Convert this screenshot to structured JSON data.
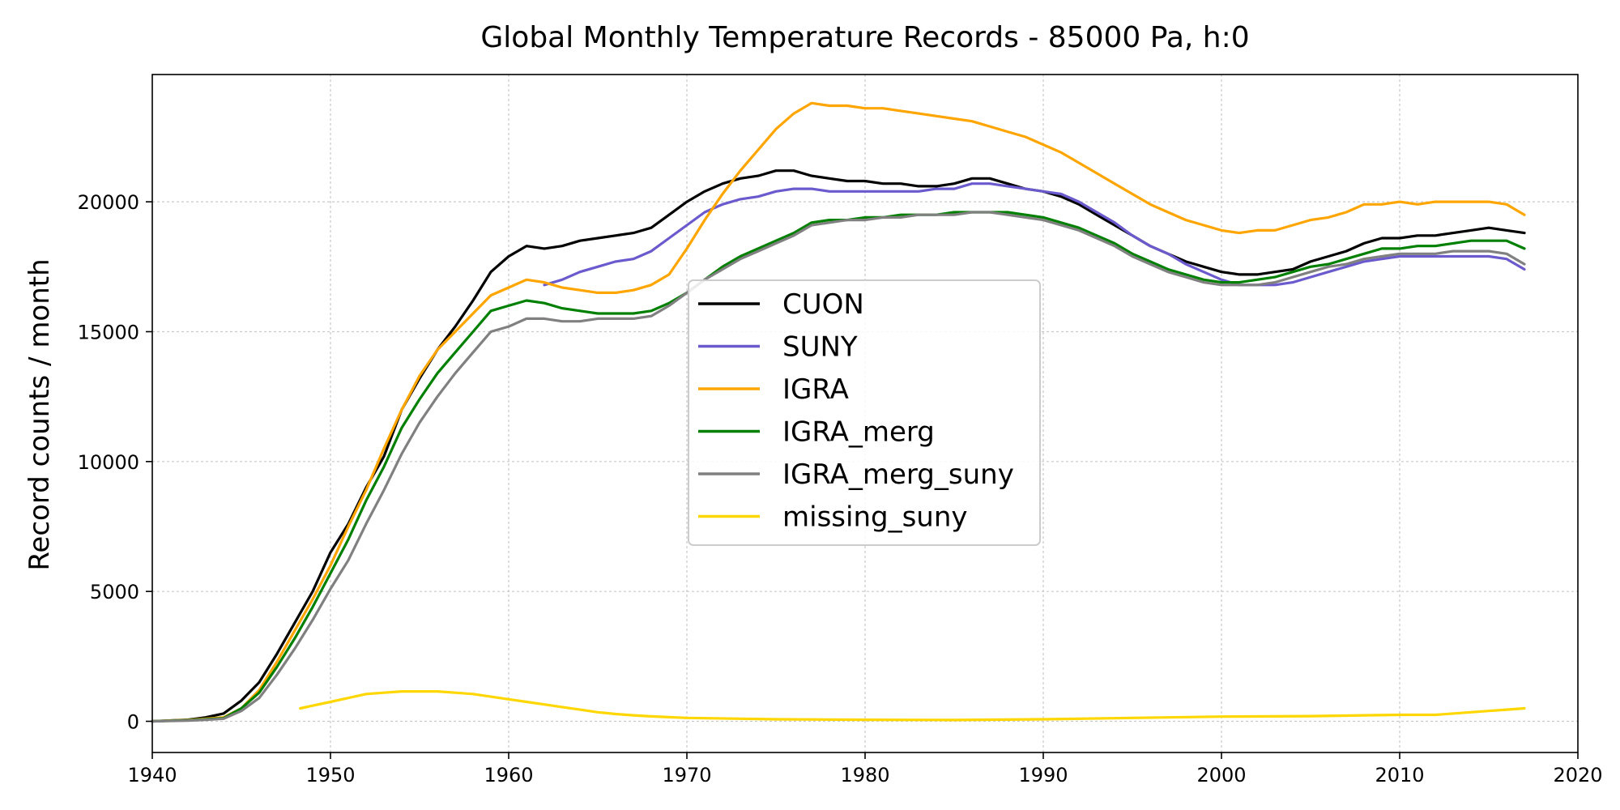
{
  "chart_data": {
    "type": "line",
    "title": "Global Monthly Temperature Records - 85000 Pa, h:0",
    "xlabel": "",
    "ylabel": "Record counts / month",
    "xlim": [
      1940,
      2020
    ],
    "ylim": [
      -1200,
      24900
    ],
    "xticks": [
      1940,
      1950,
      1960,
      1970,
      1980,
      1990,
      2000,
      2010,
      2020
    ],
    "yticks": [
      0,
      5000,
      10000,
      15000,
      20000
    ],
    "grid": true,
    "legend_position": "center",
    "series": [
      {
        "name": "CUON",
        "color": "#000000",
        "x": [
          1940,
          1942,
          1943,
          1944,
          1945,
          1946,
          1947,
          1948,
          1949,
          1950,
          1951,
          1952,
          1953,
          1954,
          1955,
          1956,
          1957,
          1958,
          1959,
          1960,
          1961,
          1962,
          1963,
          1964,
          1965,
          1966,
          1967,
          1968,
          1969,
          1970,
          1971,
          1972,
          1973,
          1974,
          1975,
          1976,
          1977,
          1978,
          1979,
          1980,
          1981,
          1982,
          1983,
          1984,
          1985,
          1986,
          1987,
          1988,
          1989,
          1990,
          1991,
          1992,
          1993,
          1994,
          1995,
          1996,
          1997,
          1998,
          1999,
          2000,
          2001,
          2002,
          2003,
          2004,
          2005,
          2006,
          2007,
          2008,
          2009,
          2010,
          2011,
          2012,
          2013,
          2014,
          2015,
          2016,
          2017
        ],
        "y": [
          0,
          60,
          150,
          300,
          800,
          1500,
          2600,
          3800,
          5000,
          6500,
          7600,
          9000,
          10200,
          12000,
          13200,
          14300,
          15200,
          16200,
          17300,
          17900,
          18300,
          18200,
          18300,
          18500,
          18600,
          18700,
          18800,
          19000,
          19500,
          20000,
          20400,
          20700,
          20900,
          21000,
          21200,
          21200,
          21000,
          20900,
          20800,
          20800,
          20700,
          20700,
          20600,
          20600,
          20700,
          20900,
          20900,
          20700,
          20500,
          20400,
          20200,
          19900,
          19500,
          19100,
          18700,
          18300,
          18000,
          17700,
          17500,
          17300,
          17200,
          17200,
          17300,
          17400,
          17700,
          17900,
          18100,
          18400,
          18600,
          18600,
          18700,
          18700,
          18800,
          18900,
          19000,
          18900,
          18800
        ]
      },
      {
        "name": "SUNY",
        "color": "#6a5acd",
        "x": [
          1962,
          1963,
          1964,
          1965,
          1966,
          1967,
          1968,
          1969,
          1970,
          1971,
          1972,
          1973,
          1974,
          1975,
          1976,
          1977,
          1978,
          1979,
          1980,
          1981,
          1982,
          1983,
          1984,
          1985,
          1986,
          1987,
          1988,
          1989,
          1990,
          1991,
          1992,
          1993,
          1994,
          1995,
          1996,
          1997,
          1998,
          1999,
          2000,
          2001,
          2002,
          2003,
          2004,
          2005,
          2006,
          2007,
          2008,
          2009,
          2010,
          2011,
          2012,
          2013,
          2014,
          2015,
          2016,
          2017
        ],
        "y": [
          16800,
          17000,
          17300,
          17500,
          17700,
          17800,
          18100,
          18600,
          19100,
          19600,
          19900,
          20100,
          20200,
          20400,
          20500,
          20500,
          20400,
          20400,
          20400,
          20400,
          20400,
          20400,
          20500,
          20500,
          20700,
          20700,
          20600,
          20500,
          20400,
          20300,
          20000,
          19600,
          19200,
          18700,
          18300,
          18000,
          17600,
          17300,
          17000,
          16800,
          16800,
          16800,
          16900,
          17100,
          17300,
          17500,
          17700,
          17800,
          17900,
          17900,
          17900,
          17900,
          17900,
          17900,
          17800,
          17400
        ]
      },
      {
        "name": "IGRA",
        "color": "#ffa500",
        "x": [
          1940,
          1942,
          1943,
          1944,
          1945,
          1946,
          1947,
          1948,
          1949,
          1950,
          1951,
          1952,
          1953,
          1954,
          1955,
          1956,
          1957,
          1958,
          1959,
          1960,
          1961,
          1962,
          1963,
          1964,
          1965,
          1966,
          1967,
          1968,
          1969,
          1970,
          1971,
          1972,
          1973,
          1974,
          1975,
          1976,
          1977,
          1978,
          1979,
          1980,
          1981,
          1982,
          1983,
          1984,
          1985,
          1986,
          1987,
          1988,
          1989,
          1990,
          1991,
          1992,
          1993,
          1994,
          1995,
          1996,
          1997,
          1998,
          1999,
          2000,
          2001,
          2002,
          2003,
          2004,
          2005,
          2006,
          2007,
          2008,
          2009,
          2010,
          2011,
          2012,
          2013,
          2014,
          2015,
          2016,
          2017
        ],
        "y": [
          0,
          50,
          100,
          150,
          500,
          1200,
          2300,
          3500,
          4700,
          6000,
          7500,
          8900,
          10500,
          12000,
          13300,
          14300,
          15000,
          15700,
          16400,
          16700,
          17000,
          16900,
          16700,
          16600,
          16500,
          16500,
          16600,
          16800,
          17200,
          18200,
          19300,
          20300,
          21200,
          22000,
          22800,
          23400,
          23800,
          23700,
          23700,
          23600,
          23600,
          23500,
          23400,
          23300,
          23200,
          23100,
          22900,
          22700,
          22500,
          22200,
          21900,
          21500,
          21100,
          20700,
          20300,
          19900,
          19600,
          19300,
          19100,
          18900,
          18800,
          18900,
          18900,
          19100,
          19300,
          19400,
          19600,
          19900,
          19900,
          20000,
          19900,
          20000,
          20000,
          20000,
          20000,
          19900,
          19500
        ]
      },
      {
        "name": "IGRA_merg",
        "color": "#008000",
        "x": [
          1940,
          1942,
          1943,
          1944,
          1945,
          1946,
          1947,
          1948,
          1949,
          1950,
          1951,
          1952,
          1953,
          1954,
          1955,
          1956,
          1957,
          1958,
          1959,
          1960,
          1961,
          1962,
          1963,
          1964,
          1965,
          1966,
          1967,
          1968,
          1969,
          1970,
          1971,
          1972,
          1973,
          1974,
          1975,
          1976,
          1977,
          1978,
          1979,
          1980,
          1981,
          1982,
          1983,
          1984,
          1985,
          1986,
          1987,
          1988,
          1989,
          1990,
          1991,
          1992,
          1993,
          1994,
          1995,
          1996,
          1997,
          1998,
          1999,
          2000,
          2001,
          2002,
          2003,
          2004,
          2005,
          2006,
          2007,
          2008,
          2009,
          2010,
          2011,
          2012,
          2013,
          2014,
          2015,
          2016,
          2017
        ],
        "y": [
          0,
          40,
          80,
          120,
          500,
          1100,
          2100,
          3200,
          4400,
          5700,
          7000,
          8500,
          9800,
          11300,
          12400,
          13400,
          14200,
          15000,
          15800,
          16000,
          16200,
          16100,
          15900,
          15800,
          15700,
          15700,
          15700,
          15800,
          16100,
          16500,
          17000,
          17500,
          17900,
          18200,
          18500,
          18800,
          19200,
          19300,
          19300,
          19400,
          19400,
          19500,
          19500,
          19500,
          19600,
          19600,
          19600,
          19600,
          19500,
          19400,
          19200,
          19000,
          18700,
          18400,
          18000,
          17700,
          17400,
          17200,
          17000,
          16900,
          16900,
          17000,
          17100,
          17300,
          17500,
          17600,
          17800,
          18000,
          18200,
          18200,
          18300,
          18300,
          18400,
          18500,
          18500,
          18500,
          18200
        ]
      },
      {
        "name": "IGRA_merg_suny",
        "color": "#808080",
        "x": [
          1940,
          1942,
          1943,
          1944,
          1945,
          1946,
          1947,
          1948,
          1949,
          1950,
          1951,
          1952,
          1953,
          1954,
          1955,
          1956,
          1957,
          1958,
          1959,
          1960,
          1961,
          1962,
          1963,
          1964,
          1965,
          1966,
          1967,
          1968,
          1969,
          1970,
          1971,
          1972,
          1973,
          1974,
          1975,
          1976,
          1977,
          1978,
          1979,
          1980,
          1981,
          1982,
          1983,
          1984,
          1985,
          1986,
          1987,
          1988,
          1989,
          1990,
          1991,
          1992,
          1993,
          1994,
          1995,
          1996,
          1997,
          1998,
          1999,
          2000,
          2001,
          2002,
          2003,
          2004,
          2005,
          2006,
          2007,
          2008,
          2009,
          2010,
          2011,
          2012,
          2013,
          2014,
          2015,
          2016,
          2017
        ],
        "y": [
          0,
          30,
          60,
          100,
          400,
          900,
          1800,
          2800,
          3900,
          5100,
          6200,
          7600,
          8900,
          10300,
          11500,
          12500,
          13400,
          14200,
          15000,
          15200,
          15500,
          15500,
          15400,
          15400,
          15500,
          15500,
          15500,
          15600,
          16000,
          16500,
          17000,
          17400,
          17800,
          18100,
          18400,
          18700,
          19100,
          19200,
          19300,
          19300,
          19400,
          19400,
          19500,
          19500,
          19500,
          19600,
          19600,
          19500,
          19400,
          19300,
          19100,
          18900,
          18600,
          18300,
          17900,
          17600,
          17300,
          17100,
          16900,
          16800,
          16800,
          16800,
          16900,
          17100,
          17300,
          17500,
          17600,
          17800,
          17900,
          18000,
          18000,
          18000,
          18100,
          18100,
          18100,
          18000,
          17600
        ]
      },
      {
        "name": "missing_suny",
        "color": "#ffd700",
        "x": [
          1948.3,
          1950,
          1951,
          1952,
          1953,
          1954,
          1955,
          1956,
          1957,
          1958,
          1959,
          1960,
          1961,
          1962,
          1963,
          1964,
          1965,
          1966,
          1967,
          1968,
          1969,
          1970,
          1975,
          1980,
          1985,
          1990,
          1995,
          2000,
          2005,
          2010,
          2012,
          2014,
          2015,
          2016,
          2017
        ],
        "y": [
          500,
          750,
          900,
          1050,
          1100,
          1150,
          1150,
          1150,
          1100,
          1050,
          950,
          850,
          750,
          650,
          550,
          450,
          350,
          280,
          230,
          190,
          160,
          130,
          80,
          60,
          50,
          80,
          130,
          180,
          200,
          250,
          250,
          350,
          400,
          450,
          500
        ]
      }
    ]
  }
}
